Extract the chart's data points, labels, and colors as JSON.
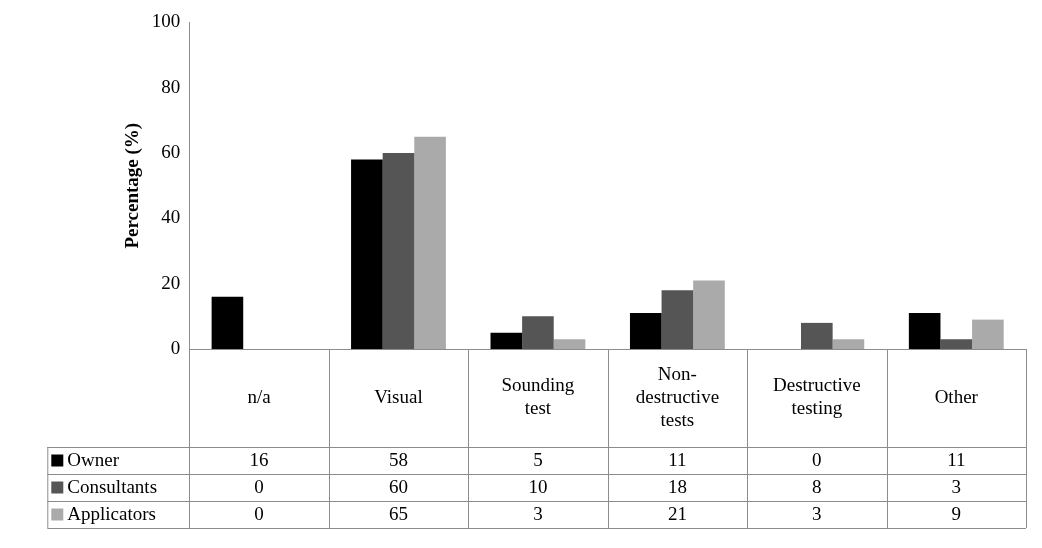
{
  "chart_data": {
    "type": "bar",
    "ylabel": "Percentage (%)",
    "categories": [
      "n/a",
      "Visual",
      "Sounding test",
      "Non-destructive tests",
      "Destructive testing",
      "Other"
    ],
    "series": [
      {
        "name": "Owner",
        "color": "#000000",
        "values": [
          16,
          58,
          5,
          11,
          0,
          11
        ]
      },
      {
        "name": "Consultants",
        "color": "#555555",
        "values": [
          0,
          60,
          10,
          18,
          8,
          3
        ]
      },
      {
        "name": "Applicators",
        "color": "#aaaaaa",
        "values": [
          0,
          65,
          3,
          21,
          3,
          9
        ]
      }
    ],
    "ylim": [
      0,
      100
    ],
    "yticks": [
      0,
      20,
      40,
      60,
      80,
      100
    ],
    "grid": false,
    "legend": "bottom left",
    "data_labels": true
  }
}
